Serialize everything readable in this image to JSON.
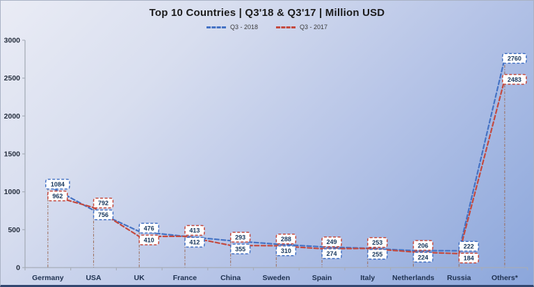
{
  "chart_data": {
    "type": "line",
    "title": "Top 10 Countries | Q3'18 & Q3'17 | Million USD",
    "categories": [
      "Germany",
      "USA",
      "UK",
      "France",
      "China",
      "Sweden",
      "Spain",
      "Italy",
      "Netherlands",
      "Russia",
      "Others*"
    ],
    "series": [
      {
        "name": "Q3 - 2018",
        "color": "#4472c4",
        "values": [
          1084,
          756,
          476,
          412,
          355,
          310,
          274,
          255,
          224,
          222,
          2760
        ]
      },
      {
        "name": "Q3 - 2017",
        "color": "#c4493e",
        "values": [
          962,
          792,
          410,
          413,
          293,
          288,
          249,
          253,
          206,
          184,
          2483
        ]
      }
    ],
    "xlabel": "",
    "ylabel": "",
    "ylim": [
      0,
      3000
    ],
    "y_ticks": [
      0,
      500,
      1000,
      1500,
      2000,
      2500,
      3000
    ],
    "grid": false,
    "legend_position": "top",
    "line_style": "dashed",
    "drop_lines": true,
    "data_labels": true,
    "label_top_series": [
      "2018",
      "2017",
      "2018",
      "2017",
      "2017",
      "2017",
      "2017",
      "2017",
      "2017",
      "2018",
      "2018"
    ]
  },
  "colors": {
    "background_top_left": "#eaecf5",
    "background_bottom_right": "#8ba6db",
    "drop_line": "#9b6a55",
    "axis": "#a6adb8",
    "label_text": "#17375d",
    "category_text": "#1f3150",
    "tick_text": "#262f3e"
  }
}
